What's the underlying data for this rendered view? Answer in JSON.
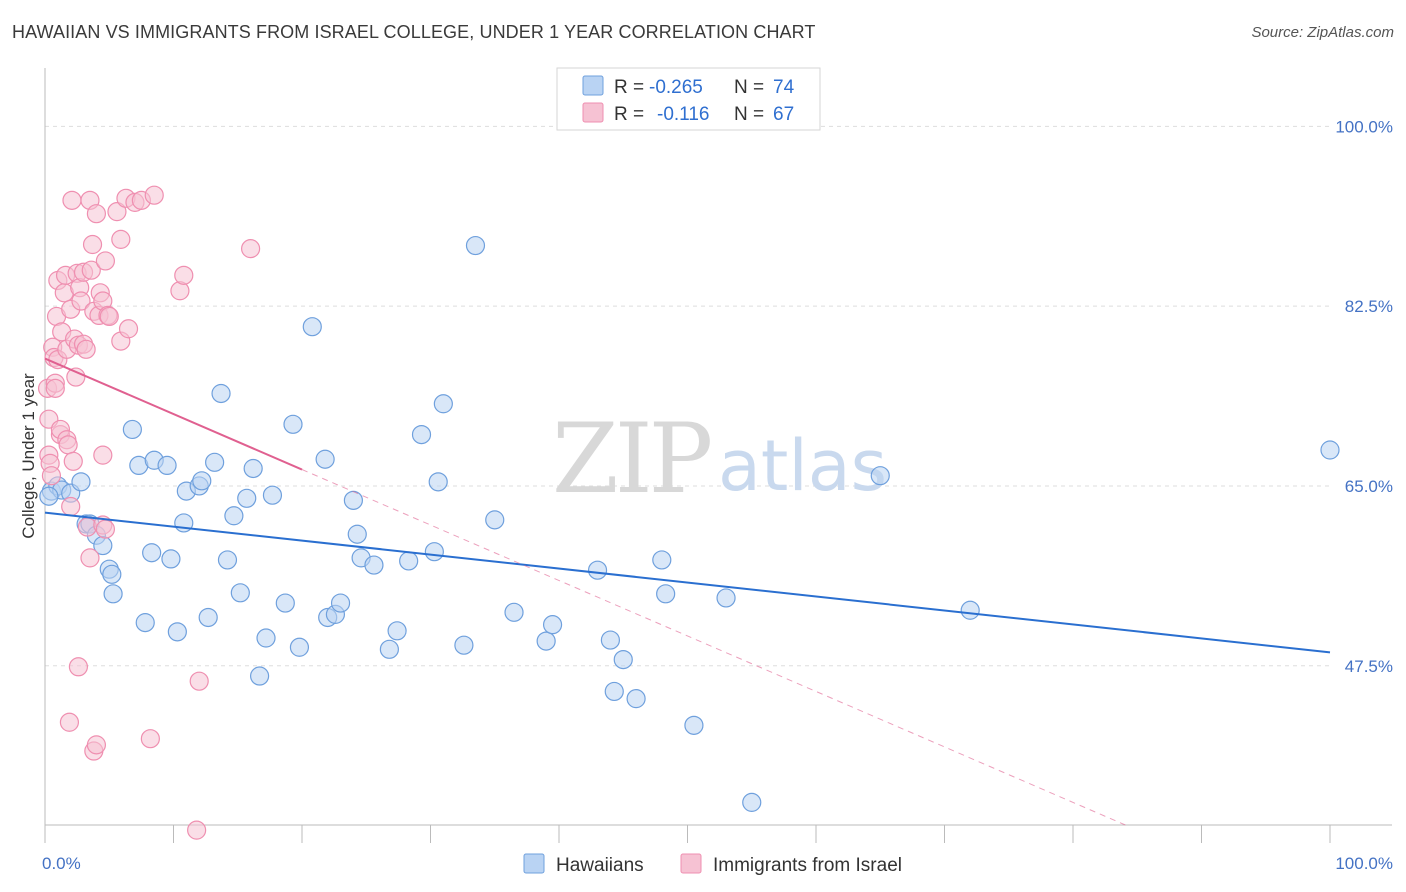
{
  "title": "HAWAIIAN VS IMMIGRANTS FROM ISRAEL COLLEGE, UNDER 1 YEAR CORRELATION CHART",
  "source": "Source: ZipAtlas.com",
  "watermark": {
    "zip": "ZIP",
    "atlas": "atlas"
  },
  "colors": {
    "blue": "#6fa0dd",
    "blue_fill": "#b9d3f3",
    "blue_line": "#2a6fd0",
    "pink": "#ef8fb0",
    "pink_fill": "#f6c2d3",
    "pink_line": "#e06090",
    "grid": "#dddddd",
    "tick_text": "#4472c4"
  },
  "legend": {
    "rows": [
      {
        "r_label": "R =",
        "r_value": "-0.265",
        "n_label": "N =",
        "n_value": "74"
      },
      {
        "r_label": "R =",
        "r_value": "-0.116",
        "n_label": "N =",
        "n_value": "67"
      }
    ]
  },
  "chart_data": {
    "type": "scatter",
    "title": "HAWAIIAN VS IMMIGRANTS FROM ISRAEL COLLEGE, UNDER 1 YEAR CORRELATION CHART",
    "xlabel": "",
    "ylabel": "College, Under 1 year",
    "xlim": [
      0,
      100
    ],
    "ylim": [
      32,
      105
    ],
    "x_tick_labels": [
      "0.0%",
      "100.0%"
    ],
    "y_ticks": [
      47.5,
      65.0,
      82.5,
      100.0
    ],
    "y_tick_labels": [
      "47.5%",
      "65.0%",
      "82.5%",
      "100.0%"
    ],
    "bottom_legend": [
      "Hawaiians",
      "Immigrants from Israel"
    ],
    "series": [
      {
        "name": "Hawaiians",
        "color": "blue",
        "trend": {
          "x0": 0,
          "y0": 62.4,
          "x1": 100,
          "y1": 48.8,
          "style": "solid"
        },
        "points": [
          [
            0.5,
            64.5
          ],
          [
            1.0,
            65.0
          ],
          [
            1.3,
            64.6
          ],
          [
            2.0,
            64.3
          ],
          [
            2.8,
            65.4
          ],
          [
            3.2,
            61.3
          ],
          [
            3.5,
            61.3
          ],
          [
            4.0,
            60.2
          ],
          [
            4.5,
            59.2
          ],
          [
            5.0,
            56.9
          ],
          [
            5.2,
            56.4
          ],
          [
            5.3,
            54.5
          ],
          [
            6.8,
            70.5
          ],
          [
            7.3,
            67.0
          ],
          [
            7.8,
            51.7
          ],
          [
            8.3,
            58.5
          ],
          [
            8.5,
            67.5
          ],
          [
            9.5,
            67.0
          ],
          [
            9.8,
            57.9
          ],
          [
            10.3,
            50.8
          ],
          [
            10.8,
            61.4
          ],
          [
            11.0,
            64.5
          ],
          [
            12.0,
            65.0
          ],
          [
            12.2,
            65.5
          ],
          [
            12.7,
            52.2
          ],
          [
            13.2,
            67.3
          ],
          [
            13.7,
            74.0
          ],
          [
            14.2,
            57.8
          ],
          [
            14.7,
            62.1
          ],
          [
            15.2,
            54.6
          ],
          [
            15.7,
            63.8
          ],
          [
            16.2,
            66.7
          ],
          [
            16.7,
            46.5
          ],
          [
            17.2,
            50.2
          ],
          [
            17.7,
            64.1
          ],
          [
            18.7,
            53.6
          ],
          [
            19.3,
            71.0
          ],
          [
            19.8,
            49.3
          ],
          [
            20.8,
            80.5
          ],
          [
            21.8,
            67.6
          ],
          [
            22.0,
            52.2
          ],
          [
            22.6,
            52.5
          ],
          [
            23.0,
            53.6
          ],
          [
            24.0,
            63.6
          ],
          [
            24.3,
            60.3
          ],
          [
            24.6,
            58.0
          ],
          [
            25.6,
            57.3
          ],
          [
            26.8,
            49.1
          ],
          [
            27.4,
            50.9
          ],
          [
            28.3,
            57.7
          ],
          [
            29.3,
            70.0
          ],
          [
            30.3,
            58.6
          ],
          [
            30.6,
            65.4
          ],
          [
            31.0,
            73.0
          ],
          [
            32.6,
            49.5
          ],
          [
            33.5,
            88.4
          ],
          [
            35.0,
            61.7
          ],
          [
            36.5,
            52.7
          ],
          [
            39.0,
            49.9
          ],
          [
            39.5,
            51.5
          ],
          [
            43.0,
            56.8
          ],
          [
            44.0,
            50.0
          ],
          [
            44.3,
            45.0
          ],
          [
            45.0,
            48.1
          ],
          [
            46.0,
            44.3
          ],
          [
            48.0,
            57.8
          ],
          [
            48.3,
            54.5
          ],
          [
            50.5,
            41.7
          ],
          [
            53.0,
            54.1
          ],
          [
            55.0,
            34.2
          ],
          [
            65.0,
            66.0
          ],
          [
            72.0,
            52.9
          ],
          [
            100.0,
            68.5
          ],
          [
            0.3,
            64.0
          ]
        ]
      },
      {
        "name": "Immigrants from Israel",
        "color": "pink",
        "trend": {
          "x0": 0,
          "y0": 77.4,
          "x1": 20.0,
          "y1": 66.6,
          "style": "solid",
          "dash_x1": 100,
          "dash_y1": 23.4
        },
        "points": [
          [
            0.2,
            74.5
          ],
          [
            0.3,
            71.5
          ],
          [
            0.3,
            68.0
          ],
          [
            0.4,
            67.2
          ],
          [
            0.5,
            66.0
          ],
          [
            0.6,
            78.5
          ],
          [
            0.7,
            77.5
          ],
          [
            0.8,
            75.0
          ],
          [
            0.8,
            74.5
          ],
          [
            0.9,
            81.5
          ],
          [
            1.0,
            77.3
          ],
          [
            1.0,
            85.0
          ],
          [
            1.2,
            70.0
          ],
          [
            1.2,
            70.5
          ],
          [
            1.3,
            80.0
          ],
          [
            1.5,
            83.8
          ],
          [
            1.6,
            85.5
          ],
          [
            1.7,
            78.3
          ],
          [
            1.7,
            69.5
          ],
          [
            1.8,
            69.0
          ],
          [
            1.9,
            42.0
          ],
          [
            2.0,
            63.0
          ],
          [
            2.0,
            82.2
          ],
          [
            2.1,
            92.8
          ],
          [
            2.2,
            67.4
          ],
          [
            2.3,
            79.3
          ],
          [
            2.4,
            75.6
          ],
          [
            2.5,
            85.7
          ],
          [
            2.6,
            78.7
          ],
          [
            2.6,
            47.4
          ],
          [
            2.7,
            84.3
          ],
          [
            2.8,
            83.0
          ],
          [
            3.0,
            85.8
          ],
          [
            3.0,
            78.8
          ],
          [
            3.2,
            78.3
          ],
          [
            3.3,
            61.0
          ],
          [
            3.5,
            92.8
          ],
          [
            3.5,
            58.0
          ],
          [
            3.6,
            86.0
          ],
          [
            3.7,
            88.5
          ],
          [
            3.8,
            39.2
          ],
          [
            3.8,
            82.0
          ],
          [
            4.0,
            91.5
          ],
          [
            4.0,
            39.8
          ],
          [
            4.2,
            81.6
          ],
          [
            4.3,
            83.8
          ],
          [
            4.5,
            61.2
          ],
          [
            4.5,
            68.0
          ],
          [
            4.5,
            83.0
          ],
          [
            4.7,
            86.9
          ],
          [
            4.7,
            60.8
          ],
          [
            4.9,
            81.6
          ],
          [
            5.0,
            81.5
          ],
          [
            5.6,
            91.7
          ],
          [
            5.9,
            79.1
          ],
          [
            5.9,
            89.0
          ],
          [
            6.3,
            93.0
          ],
          [
            6.5,
            80.3
          ],
          [
            7.0,
            92.6
          ],
          [
            7.5,
            92.8
          ],
          [
            8.2,
            40.4
          ],
          [
            8.5,
            93.3
          ],
          [
            10.5,
            84.0
          ],
          [
            10.8,
            85.5
          ],
          [
            11.8,
            31.5
          ],
          [
            12.0,
            46.0
          ],
          [
            16.0,
            88.1
          ]
        ]
      }
    ]
  }
}
